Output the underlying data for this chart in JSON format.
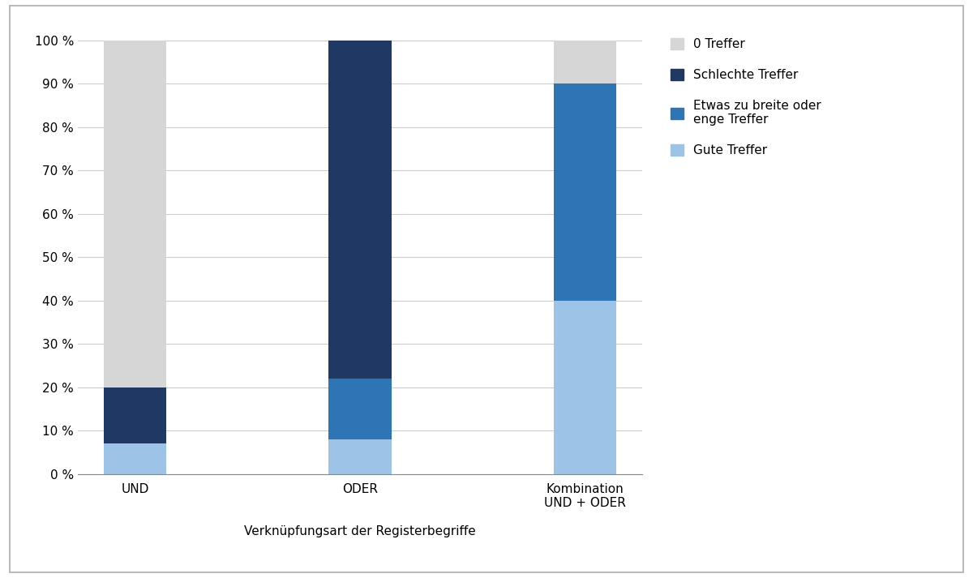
{
  "categories": [
    "UND",
    "ODER",
    "Kombination\nUND + ODER"
  ],
  "series": [
    {
      "label": "Gute Treffer",
      "values": [
        7,
        8,
        40
      ],
      "color": "#9DC3E6"
    },
    {
      "label": "Etwas zu breite oder\nenge Treffer",
      "values": [
        0,
        14,
        50
      ],
      "color": "#2E75B6"
    },
    {
      "label": "Schlechte Treffer",
      "values": [
        13,
        78,
        0
      ],
      "color": "#1F3864"
    },
    {
      "label": "0 Treffer",
      "values": [
        80,
        0,
        10
      ],
      "color": "#D6D6D6"
    }
  ],
  "xlabel": "Verknüpfungsart der Registerbegriffe",
  "ylabel": "",
  "ylim": [
    0,
    100
  ],
  "yticks": [
    0,
    10,
    20,
    30,
    40,
    50,
    60,
    70,
    80,
    90,
    100
  ],
  "ytick_labels": [
    "0 %",
    "10 %",
    "20 %",
    "30 %",
    "40 %",
    "50 %",
    "60 %",
    "70 %",
    "80 %",
    "90 %",
    "100 %"
  ],
  "background_color": "#FFFFFF",
  "bar_width": 0.28,
  "legend_order": [
    3,
    2,
    1,
    0
  ],
  "border_color": "#AAAAAA",
  "grid_color": "#CCCCCC",
  "font_size": 11,
  "xlabel_font_size": 11
}
